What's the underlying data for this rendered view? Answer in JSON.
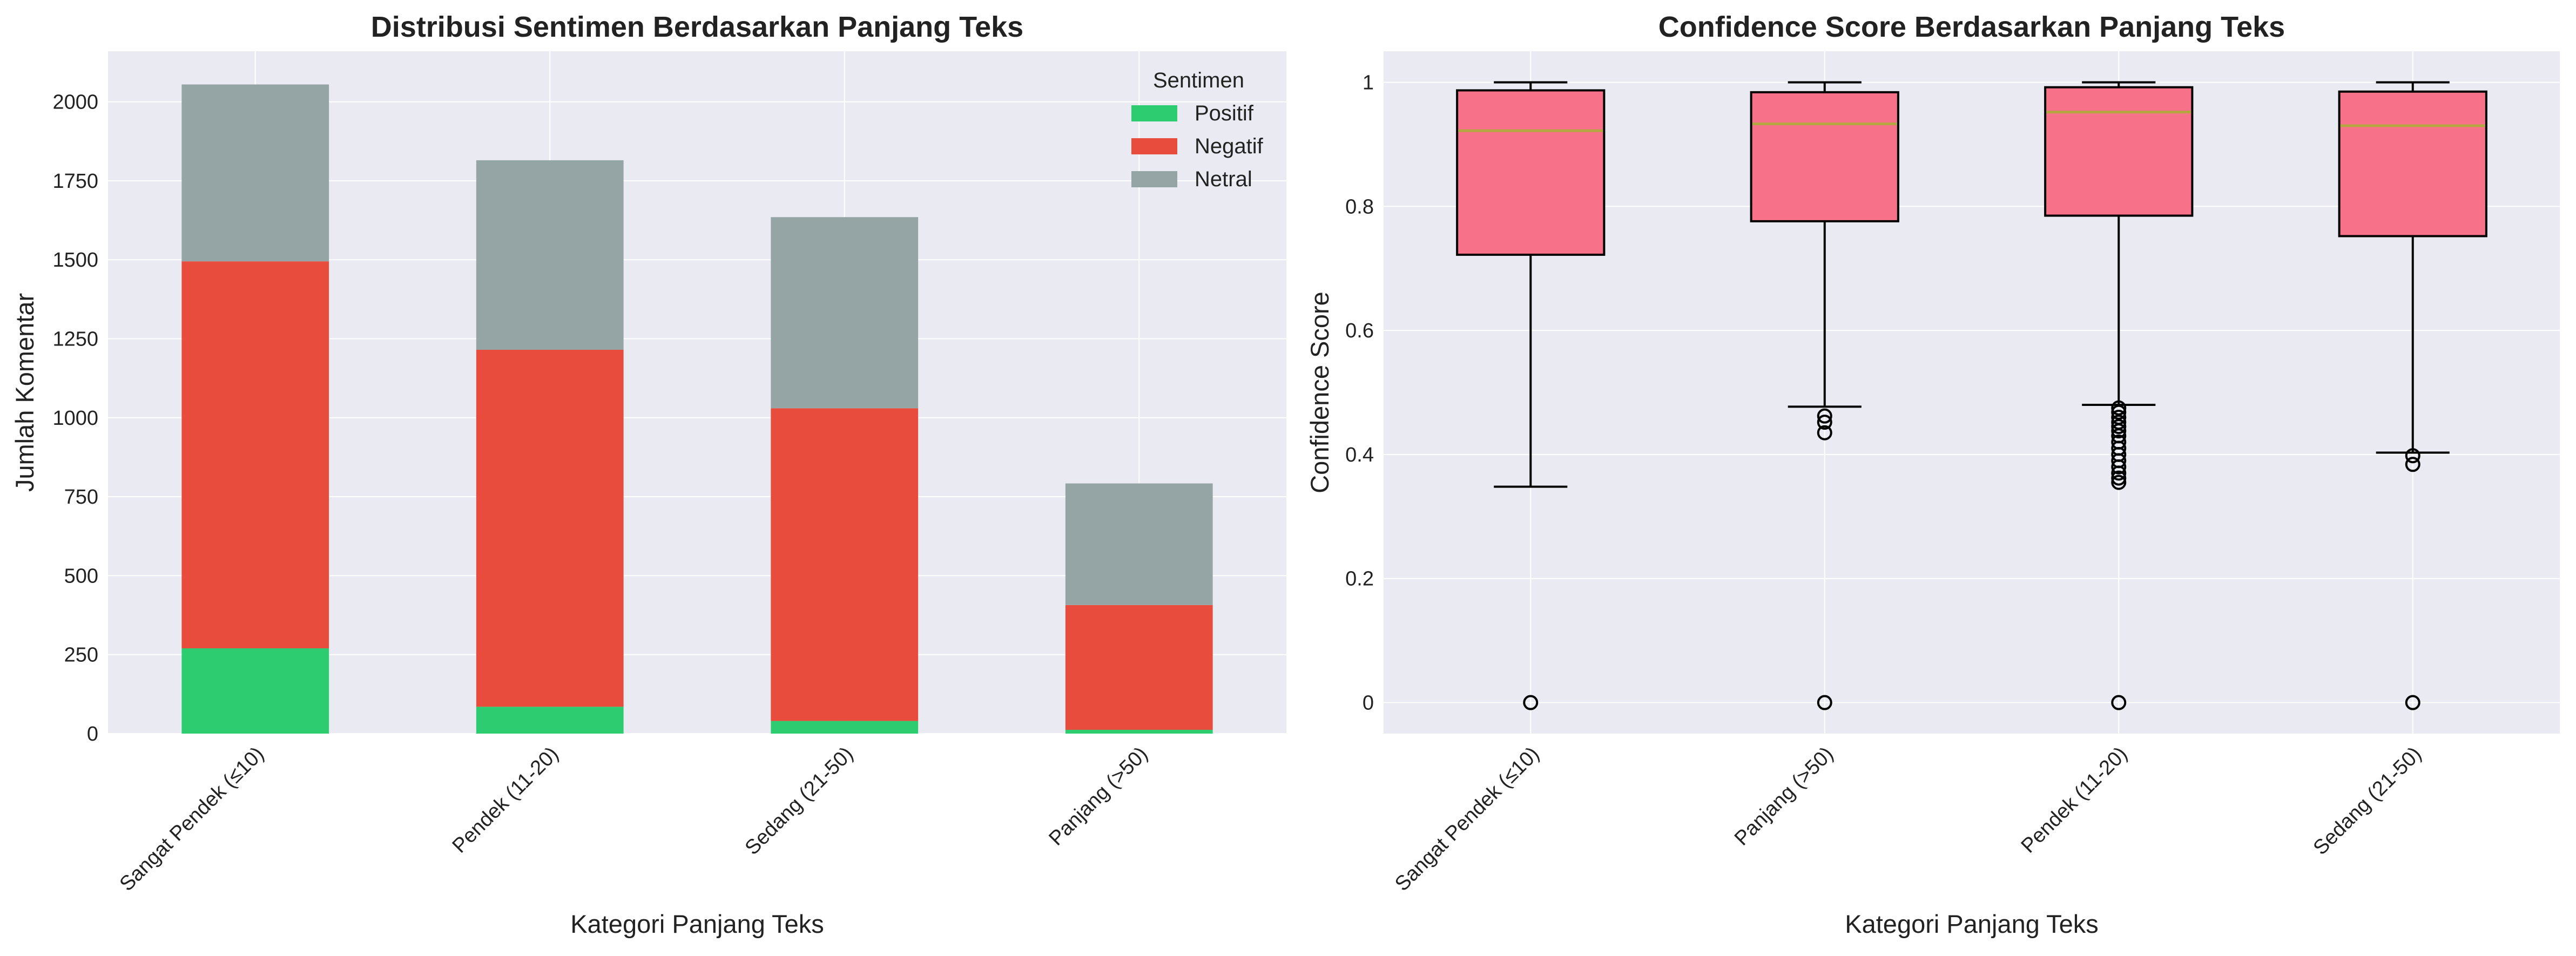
{
  "chart_data": [
    {
      "type": "bar",
      "stacked": true,
      "title": "Distribusi Sentimen Berdasarkan Panjang Teks",
      "xlabel": "Kategori Panjang Teks",
      "ylabel": "Jumlah Komentar",
      "categories": [
        "Sangat Pendek (≤10)",
        "Pendek (11-20)",
        "Sedang (21-50)",
        "Panjang (>50)"
      ],
      "series": [
        {
          "name": "Positif",
          "color": "#2ecc71",
          "values": [
            270,
            85,
            40,
            12
          ]
        },
        {
          "name": "Negatif",
          "color": "#e74c3c",
          "values": [
            1225,
            1130,
            990,
            395
          ]
        },
        {
          "name": "Netral",
          "color": "#95a5a6",
          "values": [
            560,
            600,
            605,
            385
          ]
        }
      ],
      "ylim": [
        0,
        2160
      ],
      "yticks": [
        0,
        250,
        500,
        750,
        1000,
        1250,
        1500,
        1750,
        2000
      ],
      "legend": {
        "title": "Sentimen",
        "position": "top-right"
      },
      "grid": true
    },
    {
      "type": "box",
      "title": "Confidence Score Berdasarkan Panjang Teks",
      "xlabel": "Kategori Panjang Teks",
      "ylabel": "Confidence Score",
      "categories": [
        "Sangat Pendek (≤10)",
        "Panjang (>50)",
        "Pendek (11-20)",
        "Sedang (21-50)"
      ],
      "boxes": [
        {
          "whisker_low": 0.348,
          "q1": 0.722,
          "median": 0.922,
          "q3": 0.987,
          "whisker_high": 1.0,
          "outliers": [
            0.0
          ]
        },
        {
          "whisker_low": 0.477,
          "q1": 0.776,
          "median": 0.933,
          "q3": 0.984,
          "whisker_high": 1.0,
          "outliers": [
            0.435,
            0.452,
            0.462,
            0.0
          ]
        },
        {
          "whisker_low": 0.48,
          "q1": 0.785,
          "median": 0.952,
          "q3": 0.992,
          "whisker_high": 1.0,
          "outliers": [
            0.475,
            0.468,
            0.46,
            0.452,
            0.445,
            0.438,
            0.43,
            0.42,
            0.41,
            0.4,
            0.39,
            0.38,
            0.37,
            0.362,
            0.355,
            0.0
          ]
        },
        {
          "whisker_low": 0.403,
          "q1": 0.752,
          "median": 0.93,
          "q3": 0.985,
          "whisker_high": 1.0,
          "outliers": [
            0.398,
            0.384,
            0.0
          ]
        }
      ],
      "ylim": [
        -0.05,
        1.05
      ],
      "yticks": [
        0.0,
        0.2,
        0.4,
        0.6,
        0.8,
        1.0
      ],
      "box_color": "#f77189",
      "median_color": "#b5a642",
      "grid": true
    }
  ]
}
